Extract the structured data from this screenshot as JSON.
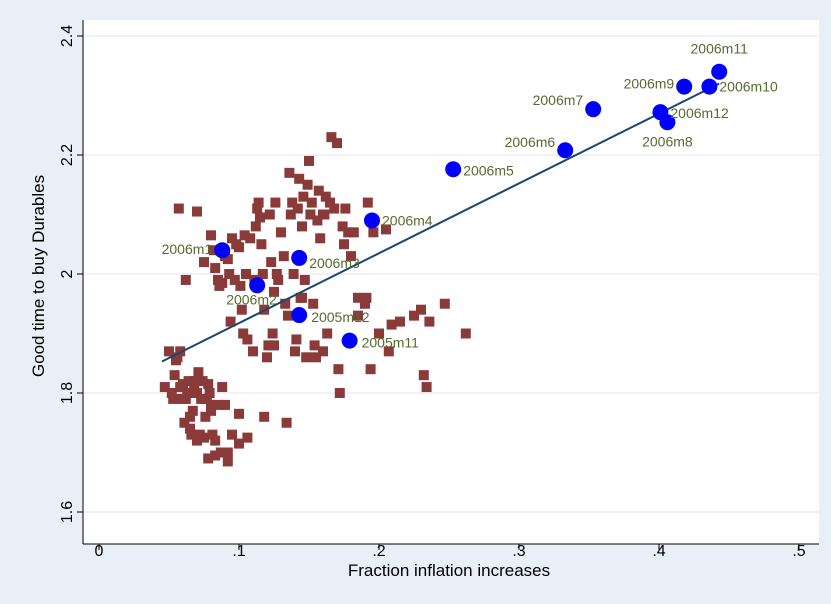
{
  "chart_data": {
    "type": "scatter",
    "xlabel": "Fraction inflation increases",
    "ylabel": "Good time to buy Durables",
    "xlim": [
      0,
      0.5
    ],
    "ylim": [
      1.6,
      2.4
    ],
    "x_ticks": [
      {
        "value": 0,
        "label": "0"
      },
      {
        "value": 0.1,
        "label": ".1"
      },
      {
        "value": 0.2,
        "label": ".2"
      },
      {
        "value": 0.3,
        "label": ".3"
      },
      {
        "value": 0.4,
        "label": ".4"
      },
      {
        "value": 0.5,
        "label": ".5"
      }
    ],
    "y_ticks": [
      {
        "value": 1.6,
        "label": "1.6"
      },
      {
        "value": 1.8,
        "label": "1.8"
      },
      {
        "value": 2,
        "label": "2"
      },
      {
        "value": 2.2,
        "label": "2.2"
      },
      {
        "value": 2.4,
        "label": "2.4"
      }
    ],
    "grid": "horizontal",
    "colors": {
      "squares": "#8b3a3a",
      "circles": "#0000ff",
      "fit_line": "#1a476f",
      "labels": "#556b2f",
      "plot_bg": "#ffffff",
      "outer_bg": "#e8eff6"
    },
    "fit_line": {
      "x": [
        0.045,
        0.443
      ],
      "y": [
        1.853,
        2.32
      ]
    },
    "labeled_points": [
      {
        "label": "2005m11",
        "x": 0.179,
        "y": 1.888
      },
      {
        "label": "2005m12",
        "x": 0.143,
        "y": 1.931
      },
      {
        "label": "2006m1",
        "x": 0.088,
        "y": 2.04
      },
      {
        "label": "2006m2",
        "x": 0.113,
        "y": 1.981
      },
      {
        "label": "2006m3",
        "x": 0.143,
        "y": 2.027
      },
      {
        "label": "2006m4",
        "x": 0.195,
        "y": 2.09
      },
      {
        "label": "2006m5",
        "x": 0.253,
        "y": 2.176
      },
      {
        "label": "2006m6",
        "x": 0.333,
        "y": 2.208
      },
      {
        "label": "2006m7",
        "x": 0.353,
        "y": 2.277
      },
      {
        "label": "2006m8",
        "x": 0.406,
        "y": 2.255
      },
      {
        "label": "2006m9",
        "x": 0.418,
        "y": 2.315
      },
      {
        "label": "2006m10",
        "x": 0.436,
        "y": 2.315
      },
      {
        "label": "2006m11",
        "x": 0.443,
        "y": 2.34
      },
      {
        "label": "2006m12",
        "x": 0.401,
        "y": 2.272
      }
    ],
    "squares": [
      [
        0.047,
        1.81
      ],
      [
        0.05,
        1.87
      ],
      [
        0.052,
        1.8
      ],
      [
        0.053,
        1.79
      ],
      [
        0.054,
        1.83
      ],
      [
        0.055,
        1.855
      ],
      [
        0.056,
        1.86
      ],
      [
        0.058,
        1.87
      ],
      [
        0.06,
        1.79
      ],
      [
        0.06,
        1.815
      ],
      [
        0.061,
        1.75
      ],
      [
        0.062,
        1.79
      ],
      [
        0.063,
        1.8
      ],
      [
        0.064,
        1.82
      ],
      [
        0.065,
        1.74
      ],
      [
        0.066,
        1.73
      ],
      [
        0.067,
        1.77
      ],
      [
        0.068,
        1.81
      ],
      [
        0.069,
        1.82
      ],
      [
        0.07,
        1.72
      ],
      [
        0.07,
        1.8
      ],
      [
        0.071,
        1.835
      ],
      [
        0.072,
        1.73
      ],
      [
        0.073,
        1.79
      ],
      [
        0.074,
        1.82
      ],
      [
        0.075,
        1.725
      ],
      [
        0.076,
        1.76
      ],
      [
        0.077,
        1.79
      ],
      [
        0.078,
        1.815
      ],
      [
        0.079,
        1.8
      ],
      [
        0.08,
        1.77
      ],
      [
        0.08,
        1.78
      ],
      [
        0.081,
        1.73
      ],
      [
        0.083,
        1.72
      ],
      [
        0.085,
        1.78
      ],
      [
        0.087,
        1.7
      ],
      [
        0.09,
        1.78
      ],
      [
        0.092,
        1.685
      ],
      [
        0.095,
        1.73
      ],
      [
        0.1,
        1.765
      ],
      [
        0.057,
        2.11
      ],
      [
        0.062,
        1.99
      ],
      [
        0.07,
        2.105
      ],
      [
        0.075,
        2.02
      ],
      [
        0.08,
        2.065
      ],
      [
        0.082,
        2.04
      ],
      [
        0.083,
        2.01
      ],
      [
        0.085,
        1.99
      ],
      [
        0.086,
        1.98
      ],
      [
        0.088,
        1.985
      ],
      [
        0.09,
        2.03
      ],
      [
        0.092,
        2.025
      ],
      [
        0.093,
        2.0
      ],
      [
        0.094,
        1.92
      ],
      [
        0.095,
        2.06
      ],
      [
        0.097,
        1.99
      ],
      [
        0.098,
        2.05
      ],
      [
        0.1,
        2.045
      ],
      [
        0.101,
        1.98
      ],
      [
        0.102,
        1.94
      ],
      [
        0.103,
        1.9
      ],
      [
        0.104,
        2.065
      ],
      [
        0.105,
        2.0
      ],
      [
        0.106,
        1.89
      ],
      [
        0.108,
        2.06
      ],
      [
        0.11,
        1.87
      ],
      [
        0.111,
        1.99
      ],
      [
        0.112,
        2.08
      ],
      [
        0.113,
        2.11
      ],
      [
        0.114,
        2.12
      ],
      [
        0.115,
        2.095
      ],
      [
        0.116,
        2.05
      ],
      [
        0.117,
        2.0
      ],
      [
        0.118,
        1.94
      ],
      [
        0.12,
        1.86
      ],
      [
        0.121,
        1.88
      ],
      [
        0.122,
        2.1
      ],
      [
        0.123,
        2.02
      ],
      [
        0.124,
        1.9
      ],
      [
        0.125,
        1.88
      ],
      [
        0.126,
        2.12
      ],
      [
        0.127,
        2.0
      ],
      [
        0.128,
        1.99
      ],
      [
        0.13,
        2.07
      ],
      [
        0.132,
        2.03
      ],
      [
        0.133,
        1.95
      ],
      [
        0.134,
        1.75
      ],
      [
        0.135,
        1.93
      ],
      [
        0.136,
        2.17
      ],
      [
        0.137,
        2.1
      ],
      [
        0.138,
        2.12
      ],
      [
        0.139,
        2.0
      ],
      [
        0.14,
        1.87
      ],
      [
        0.141,
        1.89
      ],
      [
        0.142,
        2.11
      ],
      [
        0.143,
        2.16
      ],
      [
        0.144,
        1.96
      ],
      [
        0.145,
        2.08
      ],
      [
        0.146,
        2.13
      ],
      [
        0.147,
        1.99
      ],
      [
        0.148,
        1.86
      ],
      [
        0.149,
        2.15
      ],
      [
        0.15,
        2.19
      ],
      [
        0.151,
        2.1
      ],
      [
        0.152,
        2.12
      ],
      [
        0.153,
        1.95
      ],
      [
        0.154,
        1.88
      ],
      [
        0.155,
        1.86
      ],
      [
        0.156,
        2.09
      ],
      [
        0.157,
        2.14
      ],
      [
        0.158,
        2.06
      ],
      [
        0.16,
        2.1
      ],
      [
        0.161,
        2.1
      ],
      [
        0.162,
        2.13
      ],
      [
        0.163,
        1.9
      ],
      [
        0.165,
        2.12
      ],
      [
        0.166,
        2.23
      ],
      [
        0.168,
        2.11
      ],
      [
        0.17,
        2.22
      ],
      [
        0.171,
        1.84
      ],
      [
        0.172,
        1.8
      ],
      [
        0.174,
        2.08
      ],
      [
        0.175,
        2.05
      ],
      [
        0.176,
        2.11
      ],
      [
        0.178,
        2.07
      ],
      [
        0.18,
        2.03
      ],
      [
        0.182,
        2.07
      ],
      [
        0.185,
        1.96
      ],
      [
        0.19,
        1.95
      ],
      [
        0.191,
        1.96
      ],
      [
        0.192,
        2.12
      ],
      [
        0.194,
        1.84
      ],
      [
        0.196,
        2.07
      ],
      [
        0.2,
        1.9
      ],
      [
        0.205,
        2.075
      ],
      [
        0.207,
        1.87
      ],
      [
        0.209,
        1.915
      ],
      [
        0.225,
        1.93
      ],
      [
        0.23,
        1.94
      ],
      [
        0.232,
        1.83
      ],
      [
        0.234,
        1.81
      ],
      [
        0.236,
        1.92
      ],
      [
        0.247,
        1.95
      ],
      [
        0.262,
        1.9
      ],
      [
        0.215,
        1.92
      ],
      [
        0.185,
        1.93
      ],
      [
        0.16,
        1.87
      ],
      [
        0.145,
        1.96
      ],
      [
        0.125,
        1.97
      ],
      [
        0.118,
        1.76
      ],
      [
        0.106,
        1.725
      ],
      [
        0.1,
        1.715
      ],
      [
        0.092,
        1.7
      ],
      [
        0.083,
        1.695
      ],
      [
        0.078,
        1.69
      ],
      [
        0.065,
        1.76
      ],
      [
        0.058,
        1.81
      ],
      [
        0.088,
        1.81
      ]
    ]
  }
}
